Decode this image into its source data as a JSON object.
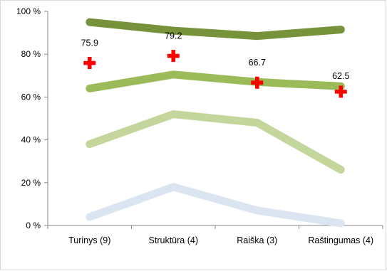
{
  "chart_data": {
    "type": "line",
    "categories": [
      "Turinys (9)",
      "Struktūra (4)",
      "Raiška (3)",
      "Raštingumas (4)"
    ],
    "ylim": [
      0,
      100
    ],
    "yticks": [
      "0 %",
      "20 %",
      "40 %",
      "60 %",
      "80 %",
      "100 %"
    ],
    "ytick_values": [
      0,
      20,
      40,
      60,
      80,
      100
    ],
    "grid": "none",
    "legend": "none",
    "series": [
      {
        "values": [
          95,
          91,
          88.5,
          91.5
        ],
        "color": "#76933c",
        "style": "line"
      },
      {
        "values": [
          64,
          70.5,
          67,
          65
        ],
        "color": "#9bbb59",
        "style": "line"
      },
      {
        "values": [
          38,
          52,
          48,
          26
        ],
        "color": "#c3d69b",
        "style": "line"
      },
      {
        "values": [
          4,
          18,
          7,
          1
        ],
        "color": "#dbe5f1",
        "style": "line"
      },
      {
        "values": [
          75.9,
          79.2,
          66.7,
          62.5
        ],
        "color": "#ff0000",
        "style": "marker-plus",
        "labels": [
          "75.9",
          "79.2",
          "66.7",
          "62.5"
        ]
      }
    ]
  }
}
